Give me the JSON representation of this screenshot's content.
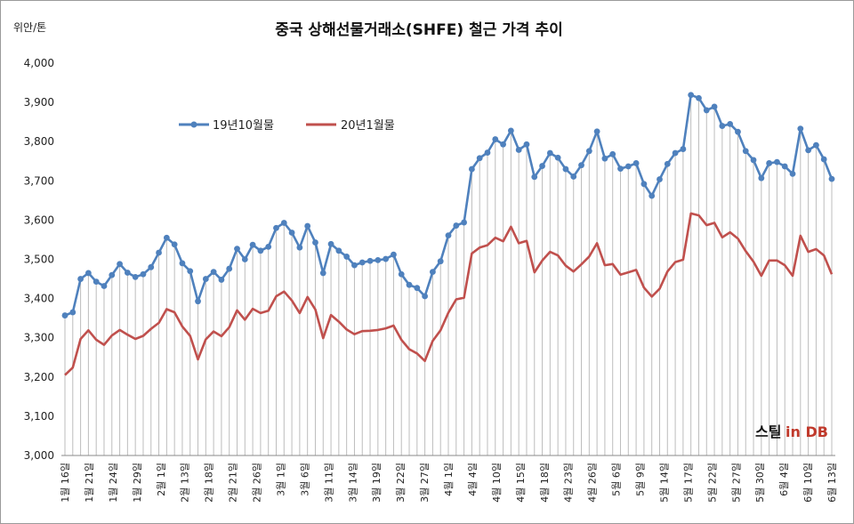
{
  "chart_data": {
    "type": "line",
    "title": "중국 상해선물거래소(SHFE)  철근 가격 추이",
    "unit_label": "위안/톤",
    "ylim": [
      3000,
      4000
    ],
    "yticks": [
      "3,000",
      "3,100",
      "3,200",
      "3,300",
      "3,400",
      "3,500",
      "3,600",
      "3,700",
      "3,800",
      "3,900",
      "4,000"
    ],
    "ytick_values": [
      3000,
      3100,
      3200,
      3300,
      3400,
      3500,
      3600,
      3700,
      3800,
      3900,
      4000
    ],
    "grid": "vertical drop lines from upper series",
    "legend_position": "top-left",
    "x_labels": [
      "1월 16일",
      "1월 21일",
      "1월 24일",
      "1월 29일",
      "2월 1일",
      "2월 13일",
      "2월 18일",
      "2월 21일",
      "2월 26일",
      "3월 1일",
      "3월 6일",
      "3월 11일",
      "3월 14일",
      "3월 19일",
      "3월 22일",
      "3월 27일",
      "4월 1일",
      "4월 4일",
      "4월 10일",
      "4월 15일",
      "4월 18일",
      "4월 23일",
      "4월 26일",
      "5월 6일",
      "5월 9일",
      "5월 14일",
      "5월 17일",
      "5월 22일",
      "5월 27일",
      "5월 30일",
      "6월 4일",
      "6월 10일",
      "6월 13일"
    ],
    "series": [
      {
        "name": "19년10월물",
        "color": "#4f81bd",
        "values": [
          3357,
          3365,
          3450,
          3465,
          3443,
          3432,
          3460,
          3488,
          3466,
          3455,
          3462,
          3480,
          3517,
          3555,
          3538,
          3490,
          3470,
          3393,
          3450,
          3468,
          3448,
          3476,
          3527,
          3500,
          3537,
          3522,
          3532,
          3580,
          3593,
          3568,
          3530,
          3585,
          3543,
          3465,
          3539,
          3522,
          3507,
          3485,
          3492,
          3496,
          3498,
          3501,
          3512,
          3462,
          3435,
          3427,
          3406,
          3468,
          3495,
          3561,
          3586,
          3594,
          3730,
          3758,
          3772,
          3806,
          3793,
          3828,
          3779,
          3793,
          3710,
          3738,
          3771,
          3759,
          3730,
          3711,
          3740,
          3776,
          3826,
          3757,
          3768,
          3731,
          3737,
          3745,
          3692,
          3662,
          3704,
          3743,
          3771,
          3781,
          3919,
          3911,
          3880,
          3889,
          3840,
          3845,
          3825,
          3776,
          3753,
          3707,
          3745,
          3748,
          3737,
          3718,
          3833,
          3778,
          3791,
          3755,
          3705
        ]
      },
      {
        "name": "20년1월물",
        "color": "#c0504d",
        "values": [
          3205,
          3224,
          3297,
          3319,
          3295,
          3282,
          3306,
          3320,
          3308,
          3297,
          3305,
          3323,
          3338,
          3373,
          3365,
          3329,
          3305,
          3245,
          3296,
          3316,
          3304,
          3327,
          3370,
          3346,
          3374,
          3363,
          3369,
          3406,
          3418,
          3395,
          3363,
          3404,
          3372,
          3299,
          3358,
          3341,
          3321,
          3309,
          3317,
          3318,
          3320,
          3324,
          3331,
          3295,
          3271,
          3260,
          3241,
          3292,
          3319,
          3364,
          3398,
          3402,
          3515,
          3530,
          3536,
          3555,
          3546,
          3583,
          3541,
          3547,
          3467,
          3497,
          3519,
          3510,
          3484,
          3469,
          3487,
          3507,
          3541,
          3485,
          3488,
          3461,
          3467,
          3473,
          3428,
          3405,
          3425,
          3469,
          3493,
          3499,
          3617,
          3612,
          3587,
          3593,
          3556,
          3569,
          3553,
          3521,
          3494,
          3458,
          3497,
          3497,
          3485,
          3458,
          3560,
          3519,
          3526,
          3510,
          3462
        ]
      }
    ]
  },
  "logo": {
    "text_a": "스틸",
    "text_b": "in DB"
  }
}
